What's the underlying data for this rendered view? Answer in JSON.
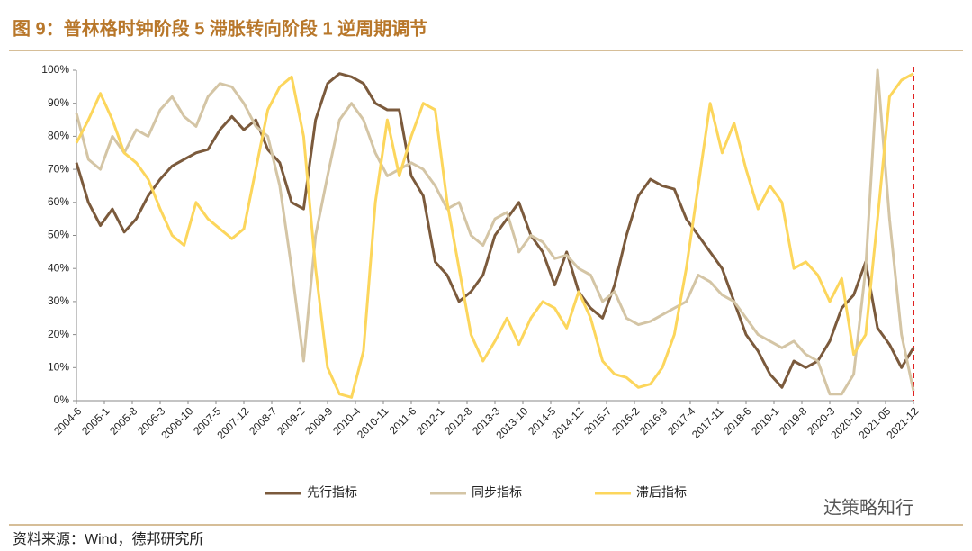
{
  "chart_data": {
    "type": "line",
    "title": "图 9：普林格时钟阶段 5 滞胀转向阶段 1 逆周期调节",
    "source": "资料来源：Wind，德邦研究所",
    "watermark": "达策略知行",
    "x": [
      "2004-6",
      "2004-9",
      "2004-12",
      "2005-3",
      "2005-6",
      "2005-9",
      "2005-12",
      "2006-3",
      "2006-6",
      "2006-9",
      "2006-12",
      "2007-3",
      "2007-6",
      "2007-9",
      "2007-12",
      "2008-3",
      "2008-6",
      "2008-9",
      "2008-12",
      "2009-3",
      "2009-6",
      "2009-9",
      "2009-12",
      "2010-3",
      "2010-6",
      "2010-9",
      "2010-12",
      "2011-3",
      "2011-6",
      "2011-9",
      "2011-12",
      "2012-3",
      "2012-6",
      "2012-9",
      "2012-12",
      "2013-3",
      "2013-6",
      "2013-9",
      "2013-12",
      "2014-3",
      "2014-6",
      "2014-9",
      "2014-12",
      "2015-3",
      "2015-6",
      "2015-9",
      "2015-12",
      "2016-3",
      "2016-6",
      "2016-9",
      "2016-12",
      "2017-3",
      "2017-6",
      "2017-9",
      "2017-12",
      "2018-3",
      "2018-6",
      "2018-9",
      "2018-12",
      "2019-3",
      "2019-6",
      "2019-9",
      "2019-12",
      "2020-3",
      "2020-6",
      "2020-9",
      "2020-12",
      "2021-3",
      "2021-6",
      "2021-9",
      "2021-12"
    ],
    "series": [
      {
        "name": "先行指标",
        "color": "#7b5a3c",
        "values": [
          72,
          60,
          53,
          58,
          51,
          55,
          62,
          67,
          71,
          73,
          75,
          76,
          82,
          86,
          82,
          85,
          76,
          72,
          60,
          58,
          85,
          96,
          99,
          98,
          96,
          90,
          88,
          88,
          68,
          62,
          42,
          38,
          30,
          33,
          38,
          50,
          55,
          60,
          50,
          45,
          35,
          45,
          33,
          28,
          25,
          35,
          50,
          62,
          67,
          65,
          64,
          55,
          50,
          45,
          40,
          30,
          20,
          15,
          8,
          4,
          12,
          10,
          12,
          18,
          28,
          32,
          42,
          22,
          17,
          10,
          16
        ]
      },
      {
        "name": "同步指标",
        "color": "#d4c5a5",
        "values": [
          87,
          73,
          70,
          80,
          75,
          82,
          80,
          88,
          92,
          86,
          83,
          92,
          96,
          95,
          90,
          83,
          80,
          65,
          40,
          12,
          50,
          68,
          85,
          90,
          85,
          75,
          68,
          70,
          72,
          70,
          65,
          58,
          60,
          50,
          47,
          55,
          57,
          45,
          50,
          48,
          43,
          44,
          40,
          38,
          30,
          33,
          25,
          23,
          24,
          26,
          28,
          30,
          38,
          36,
          32,
          30,
          25,
          20,
          18,
          16,
          18,
          14,
          12,
          2,
          2,
          8,
          40,
          100,
          55,
          20,
          3
        ]
      },
      {
        "name": "滞后指标",
        "color": "#fcd65c",
        "values": [
          78,
          85,
          93,
          85,
          75,
          72,
          67,
          58,
          50,
          47,
          60,
          55,
          52,
          49,
          52,
          70,
          88,
          95,
          98,
          80,
          40,
          10,
          2,
          1,
          15,
          60,
          85,
          68,
          80,
          90,
          88,
          60,
          40,
          20,
          12,
          18,
          25,
          17,
          25,
          30,
          28,
          22,
          33,
          25,
          12,
          8,
          7,
          4,
          5,
          10,
          20,
          40,
          65,
          90,
          75,
          84,
          70,
          58,
          65,
          60,
          40,
          42,
          38,
          30,
          37,
          14,
          20,
          55,
          92,
          97,
          99
        ]
      }
    ],
    "xticks": [
      "2004-6",
      "2005-1",
      "2005-8",
      "2006-3",
      "2006-10",
      "2007-5",
      "2007-12",
      "2008-7",
      "2009-2",
      "2009-9",
      "2010-4",
      "2010-11",
      "2011-6",
      "2012-1",
      "2012-8",
      "2013-3",
      "2013-10",
      "2014-5",
      "2014-12",
      "2015-7",
      "2016-2",
      "2016-9",
      "2017-4",
      "2017-11",
      "2018-6",
      "2019-1",
      "2019-8",
      "2020-3",
      "2020-10",
      "2021-05",
      "2021-12"
    ],
    "ylim": [
      0,
      100
    ],
    "yticks": [
      {
        "value": 0,
        "label": "0%"
      },
      {
        "value": 10,
        "label": "10%"
      },
      {
        "value": 20,
        "label": "20%"
      },
      {
        "value": 30,
        "label": "30%"
      },
      {
        "value": 40,
        "label": "40%"
      },
      {
        "value": 50,
        "label": "50%"
      },
      {
        "value": 60,
        "label": "60%"
      },
      {
        "value": 70,
        "label": "70%"
      },
      {
        "value": 80,
        "label": "80%"
      },
      {
        "value": 90,
        "label": "90%"
      },
      {
        "value": 100,
        "label": "100%"
      }
    ],
    "grid": false
  }
}
